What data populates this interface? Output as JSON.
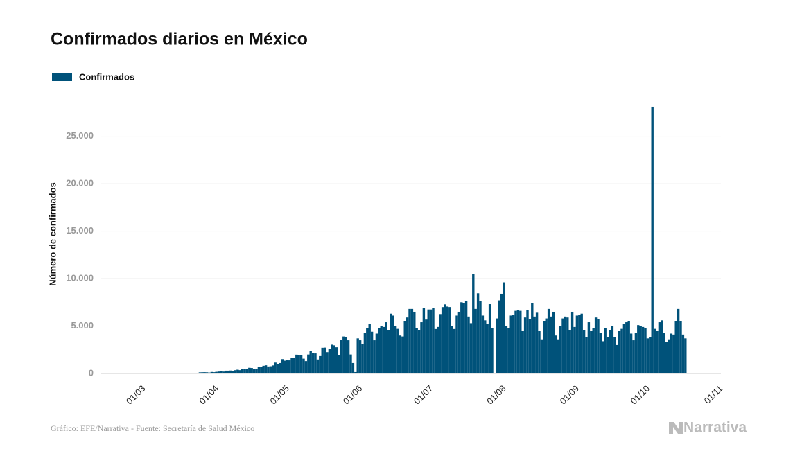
{
  "chart_data": {
    "type": "bar",
    "title": "Confirmados diarios en México",
    "y_label": "Número de confirmados",
    "source": "Gráfico: EFE/Narrativa - Fuente: Secretaría de Salud México",
    "logo": "Narrativa",
    "color": "#00527a",
    "grid": true,
    "legend": "top-left",
    "xticks": [
      "01/03",
      "01/04",
      "01/05",
      "01/06",
      "01/07",
      "01/08",
      "01/09",
      "01/10",
      "01/11"
    ],
    "ylim": [
      0,
      29500
    ],
    "yticks": [
      0,
      {
        "value": 5000,
        "label": "5.000"
      },
      {
        "value": 10000,
        "label": "10.000"
      },
      {
        "value": 15000,
        "label": "15.000"
      },
      {
        "value": 20000,
        "label": "20.000"
      },
      {
        "value": 25000,
        "label": "25.000"
      }
    ],
    "series": [
      {
        "name": "Confirmados",
        "color": "#00527a",
        "x": [
          "27/02",
          "28/02",
          "29/02",
          "01/03",
          "02/03",
          "03/03",
          "04/03",
          "05/03",
          "06/03",
          "07/03",
          "08/03",
          "09/03",
          "10/03",
          "11/03",
          "12/03",
          "13/03",
          "14/03",
          "15/03",
          "16/03",
          "17/03",
          "18/03",
          "19/03",
          "20/03",
          "21/03",
          "22/03",
          "23/03",
          "24/03",
          "25/03",
          "26/03",
          "27/03",
          "28/03",
          "29/03",
          "30/03",
          "31/03",
          "01/04",
          "02/04",
          "03/04",
          "04/04",
          "05/04",
          "06/04",
          "07/04",
          "08/04",
          "09/04",
          "10/04",
          "11/04",
          "12/04",
          "13/04",
          "14/04",
          "15/04",
          "16/04",
          "17/04",
          "18/04",
          "19/04",
          "20/04",
          "21/04",
          "22/04",
          "23/04",
          "24/04",
          "25/04",
          "26/04",
          "27/04",
          "28/04",
          "29/04",
          "30/04",
          "01/05",
          "02/05",
          "03/05",
          "04/05",
          "05/05",
          "06/05",
          "07/05",
          "08/05",
          "09/05",
          "10/05",
          "11/05",
          "12/05",
          "13/05",
          "14/05",
          "15/05",
          "16/05",
          "17/05",
          "18/05",
          "19/05",
          "20/05",
          "21/05",
          "22/05",
          "23/05",
          "24/05",
          "25/05",
          "26/05",
          "27/05",
          "28/05",
          "29/05",
          "30/05",
          "31/05",
          "01/06",
          "02/06",
          "03/06",
          "04/06",
          "05/06",
          "06/06",
          "07/06",
          "08/06",
          "09/06",
          "10/06",
          "11/06",
          "12/06",
          "13/06",
          "14/06",
          "15/06",
          "16/06",
          "17/06",
          "18/06",
          "19/06",
          "20/06",
          "21/06",
          "22/06",
          "23/06",
          "24/06",
          "25/06",
          "26/06",
          "27/06",
          "28/06",
          "29/06",
          "30/06",
          "01/07",
          "02/07",
          "03/07",
          "04/07",
          "05/07",
          "06/07",
          "07/07",
          "08/07",
          "09/07",
          "10/07",
          "11/07",
          "12/07",
          "13/07",
          "14/07",
          "15/07",
          "16/07",
          "17/07",
          "18/07",
          "19/07",
          "20/07",
          "21/07",
          "22/07",
          "23/07",
          "24/07",
          "25/07",
          "26/07",
          "27/07",
          "28/07",
          "29/07",
          "30/07",
          "31/07",
          "01/08",
          "02/08",
          "03/08",
          "04/08",
          "05/08",
          "06/08",
          "07/08",
          "08/08",
          "09/08",
          "10/08",
          "11/08",
          "12/08",
          "13/08",
          "14/08",
          "15/08",
          "16/08",
          "17/08",
          "18/08",
          "19/08",
          "20/08",
          "21/08",
          "22/08",
          "23/08",
          "24/08",
          "25/08",
          "26/08",
          "27/08",
          "28/08",
          "29/08",
          "30/08",
          "31/08",
          "01/09",
          "02/09",
          "03/09",
          "04/09",
          "05/09",
          "06/09",
          "07/09",
          "08/09",
          "09/09",
          "10/09",
          "11/09",
          "12/09",
          "13/09",
          "14/09",
          "15/09",
          "16/09",
          "17/09",
          "18/09",
          "19/09",
          "20/09",
          "21/09",
          "22/09",
          "23/09",
          "24/09",
          "25/09",
          "26/09",
          "27/09",
          "28/09",
          "29/09",
          "30/09",
          "01/10",
          "02/10",
          "03/10",
          "04/10",
          "05/10",
          "06/10",
          "07/10",
          "08/10",
          "09/10",
          "10/10",
          "11/10",
          "12/10",
          "13/10",
          "14/10",
          "15/10",
          "16/10",
          "17/10",
          "18/10",
          "19/10"
        ],
        "values": [
          1,
          1,
          1,
          0,
          1,
          0,
          1,
          0,
          1,
          1,
          1,
          0,
          1,
          4,
          4,
          3,
          15,
          12,
          12,
          29,
          24,
          46,
          51,
          48,
          52,
          64,
          38,
          65,
          70,
          121,
          130,
          137,
          126,
          100,
          160,
          137,
          178,
          206,
          243,
          204,
          297,
          296,
          310,
          255,
          349,
          400,
          354,
          447,
          500,
          457,
          603,
          578,
          500,
          512,
          659,
          687,
          813,
          865,
          740,
          763,
          852,
          1148,
          1000,
          1100,
          1515,
          1349,
          1434,
          1383,
          1627,
          1609,
          1982,
          1906,
          1938,
          1562,
          1305,
          1997,
          2409,
          2184,
          2112,
          1476,
          1833,
          2713,
          2729,
          2248,
          2605,
          3035,
          2969,
          2764,
          1930,
          3568,
          3900,
          3800,
          3500,
          2000,
          1100,
          150,
          3700,
          3500,
          3100,
          4300,
          4800,
          5200,
          4400,
          3500,
          4200,
          4800,
          5000,
          4900,
          5400,
          4600,
          6300,
          6100,
          5000,
          4700,
          4000,
          3900,
          5500,
          5900,
          6800,
          6800,
          6500,
          4800,
          4600,
          5400,
          6900,
          5681,
          6741,
          6740,
          6914,
          4683,
          4902,
          6258,
          6995,
          7280,
          7051,
          7000,
          5000,
          4685,
          6100,
          6500,
          7500,
          7400,
          7600,
          6000,
          5300,
          10500,
          6800,
          8450,
          7600,
          6100,
          5600,
          5200,
          7300,
          4800,
          0,
          5800,
          7700,
          8400,
          9600,
          5000,
          4800,
          6100,
          6200,
          6600,
          6700,
          6600,
          4500,
          5900,
          6700,
          5700,
          7400,
          6000,
          6400,
          4500,
          3600,
          5500,
          5800,
          6800,
          6000,
          6500,
          4000,
          3600,
          5000,
          5800,
          6000,
          5900,
          4600,
          6500,
          4900,
          6100,
          6200,
          6300,
          4600,
          3800,
          5400,
          4500,
          4800,
          5900,
          5700,
          4300,
          3400,
          4800,
          3800,
          4600,
          5000,
          3800,
          3000,
          4500,
          4700,
          5200,
          5400,
          5500,
          4200,
          3500,
          4300,
          5100,
          5000,
          4900,
          4800,
          3700,
          3800,
          28115,
          4700,
          4500,
          5400,
          5600,
          4300,
          3300,
          3600,
          4200,
          4100,
          5500,
          6800,
          5500,
          4100,
          3700
        ]
      }
    ]
  }
}
